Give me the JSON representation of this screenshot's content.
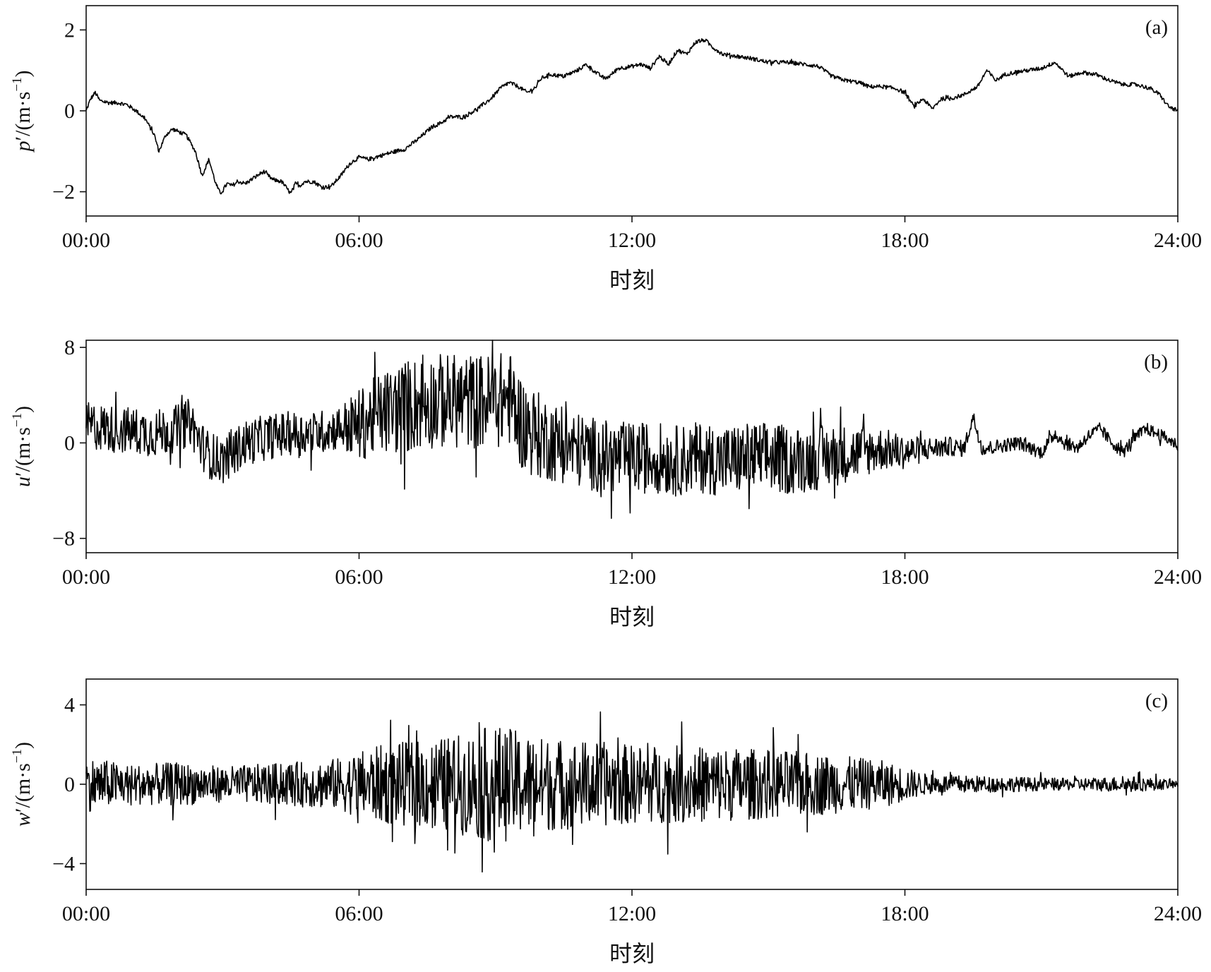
{
  "colors": {
    "line": "#000000",
    "axis": "#111111",
    "background": "#ffffff"
  },
  "chart_data": [
    {
      "type": "line",
      "panel_label": "(a)",
      "ylabel_symbol": "p",
      "ylabel_unit": "/(m·s",
      "ylabel_exp": "−1",
      "ylabel_close": ")",
      "xlabel": "时刻",
      "xlim": [
        0,
        24
      ],
      "ylim": [
        -2.6,
        2.6
      ],
      "xticks": [
        0,
        6,
        12,
        18,
        24
      ],
      "xtick_labels": [
        "00:00",
        "06:00",
        "12:00",
        "18:00",
        "24:00"
      ],
      "yticks": [
        -2,
        0,
        2
      ],
      "ytick_labels": [
        "−2",
        "0",
        "2"
      ],
      "noise_envelope": [
        [
          0,
          0.05
        ],
        [
          24,
          0.05
        ]
      ],
      "series": [
        {
          "x": [
            0,
            0.1,
            0.2,
            0.3,
            0.5,
            0.7,
            0.9,
            1.1,
            1.3,
            1.5,
            1.6,
            1.75,
            1.9,
            2.0,
            2.2,
            2.4,
            2.55,
            2.7,
            2.85,
            2.95,
            3.1,
            3.2,
            3.35,
            3.5,
            3.7,
            3.9,
            4.1,
            4.3,
            4.5,
            4.6,
            4.7,
            4.8,
            5.0,
            5.2,
            5.4,
            5.6,
            5.8,
            6.0,
            6.2,
            6.5,
            6.8,
            7.0,
            7.3,
            7.6,
            7.8,
            8.0,
            8.3,
            8.6,
            8.9,
            9.1,
            9.3,
            9.5,
            9.7,
            9.9,
            10.0,
            10.2,
            10.5,
            10.8,
            11.0,
            11.2,
            11.4,
            11.5,
            11.7,
            12.0,
            12.2,
            12.4,
            12.6,
            12.8,
            13.0,
            13.2,
            13.4,
            13.6,
            13.8,
            14.0,
            14.3,
            14.6,
            15.0,
            15.4,
            15.8,
            16.1,
            16.4,
            16.7,
            17.0,
            17.2,
            17.5,
            17.8,
            18.0,
            18.2,
            18.4,
            18.6,
            18.8,
            19.0,
            19.3,
            19.6,
            19.8,
            20.0,
            20.2,
            20.4,
            20.7,
            21.0,
            21.3,
            21.6,
            21.9,
            22.2,
            22.5,
            22.8,
            23.1,
            23.4,
            23.6,
            23.8,
            24.0
          ],
          "values": [
            0.0,
            0.3,
            0.45,
            0.25,
            0.2,
            0.2,
            0.15,
            0.0,
            -0.2,
            -0.6,
            -1.0,
            -0.6,
            -0.45,
            -0.5,
            -0.6,
            -1.0,
            -1.6,
            -1.2,
            -1.8,
            -2.05,
            -1.8,
            -1.85,
            -1.75,
            -1.8,
            -1.65,
            -1.5,
            -1.7,
            -1.75,
            -2.05,
            -1.8,
            -1.85,
            -1.75,
            -1.75,
            -1.9,
            -1.85,
            -1.6,
            -1.3,
            -1.15,
            -1.2,
            -1.1,
            -1.0,
            -0.95,
            -0.7,
            -0.4,
            -0.3,
            -0.15,
            -0.15,
            0.05,
            0.3,
            0.55,
            0.7,
            0.6,
            0.45,
            0.6,
            0.8,
            0.9,
            0.85,
            1.0,
            1.15,
            0.95,
            0.8,
            0.85,
            1.05,
            1.1,
            1.15,
            1.05,
            1.35,
            1.15,
            1.5,
            1.4,
            1.7,
            1.75,
            1.55,
            1.4,
            1.35,
            1.3,
            1.2,
            1.2,
            1.15,
            1.1,
            0.85,
            0.75,
            0.7,
            0.6,
            0.6,
            0.55,
            0.45,
            0.1,
            0.3,
            0.05,
            0.3,
            0.3,
            0.4,
            0.6,
            1.0,
            0.75,
            0.9,
            0.95,
            1.0,
            1.05,
            1.2,
            0.85,
            0.95,
            0.9,
            0.75,
            0.65,
            0.65,
            0.55,
            0.4,
            0.1,
            0.0
          ]
        }
      ]
    },
    {
      "type": "line",
      "panel_label": "(b)",
      "ylabel_symbol": "u",
      "ylabel_unit": "/(m·s",
      "ylabel_exp": "−1",
      "ylabel_close": ")",
      "xlabel": "时刻",
      "xlim": [
        0,
        24
      ],
      "ylim": [
        -9.2,
        8.6
      ],
      "xticks": [
        0,
        6,
        12,
        18,
        24
      ],
      "xtick_labels": [
        "00:00",
        "06:00",
        "12:00",
        "18:00",
        "24:00"
      ],
      "yticks": [
        -8,
        0,
        8
      ],
      "ytick_labels": [
        "−8",
        "0",
        "8"
      ],
      "noise_envelope": [
        [
          0,
          2.0
        ],
        [
          2.5,
          2.0
        ],
        [
          5.5,
          1.8
        ],
        [
          6.0,
          3.0
        ],
        [
          7.0,
          4.0
        ],
        [
          8.5,
          4.0
        ],
        [
          9.5,
          4.0
        ],
        [
          10.5,
          3.2
        ],
        [
          12.0,
          3.0
        ],
        [
          15.0,
          3.0
        ],
        [
          16.5,
          2.6
        ],
        [
          17.5,
          1.8
        ],
        [
          18.5,
          1.0
        ],
        [
          19.5,
          0.6
        ],
        [
          24.0,
          0.5
        ]
      ],
      "series": [
        {
          "x": [
            0,
            0.5,
            1.0,
            1.5,
            2.0,
            2.3,
            2.5,
            2.7,
            3.0,
            3.5,
            4.0,
            4.5,
            5.0,
            5.5,
            6.0,
            6.5,
            7.0,
            7.5,
            8.0,
            8.5,
            9.0,
            9.3,
            9.6,
            10.0,
            10.5,
            11.0,
            11.5,
            12.0,
            12.5,
            13.0,
            13.5,
            14.0,
            14.5,
            15.0,
            15.5,
            16.0,
            16.5,
            17.0,
            17.5,
            18.0,
            18.5,
            19.0,
            19.3,
            19.5,
            19.7,
            20.0,
            20.5,
            21.0,
            21.3,
            21.5,
            21.8,
            22.0,
            22.3,
            22.5,
            22.8,
            23.0,
            23.3,
            23.7,
            24.0
          ],
          "values": [
            1.5,
            1.2,
            1.0,
            0.8,
            1.2,
            1.8,
            0.0,
            -1.0,
            -1.5,
            0.0,
            0.5,
            0.8,
            0.8,
            1.2,
            1.5,
            2.5,
            3.0,
            3.5,
            3.5,
            3.5,
            3.5,
            3.8,
            1.5,
            0.5,
            -0.2,
            -0.8,
            -1.2,
            -1.3,
            -1.2,
            -1.5,
            -1.2,
            -1.5,
            -1.3,
            -1.2,
            -1.5,
            -1.3,
            -1.0,
            -0.8,
            -0.5,
            -0.8,
            -0.5,
            -0.3,
            -0.5,
            2.2,
            -0.5,
            -0.3,
            0.0,
            -0.8,
            0.8,
            0.0,
            -0.4,
            0.5,
            1.2,
            0.2,
            -0.8,
            0.2,
            1.2,
            0.5,
            -0.2
          ]
        }
      ]
    },
    {
      "type": "line",
      "panel_label": "(c)",
      "ylabel_symbol": "w",
      "ylabel_unit": "/(m·s",
      "ylabel_exp": "−1",
      "ylabel_close": ")",
      "xlabel": "时刻",
      "xlim": [
        0,
        24
      ],
      "ylim": [
        -5.3,
        5.3
      ],
      "xticks": [
        0,
        6,
        12,
        18,
        24
      ],
      "xtick_labels": [
        "00:00",
        "06:00",
        "12:00",
        "18:00",
        "24:00"
      ],
      "yticks": [
        -4,
        0,
        4
      ],
      "ytick_labels": [
        "−4",
        "0",
        "4"
      ],
      "noise_envelope": [
        [
          0,
          1.4
        ],
        [
          1.0,
          1.0
        ],
        [
          2.0,
          1.1
        ],
        [
          3.0,
          0.9
        ],
        [
          4.5,
          1.1
        ],
        [
          5.5,
          1.3
        ],
        [
          6.5,
          2.0
        ],
        [
          8.0,
          2.4
        ],
        [
          9.0,
          3.0
        ],
        [
          10.0,
          2.4
        ],
        [
          12.0,
          2.0
        ],
        [
          14.0,
          1.9
        ],
        [
          16.0,
          1.6
        ],
        [
          17.5,
          1.2
        ],
        [
          18.5,
          0.5
        ],
        [
          20.0,
          0.4
        ],
        [
          21.5,
          0.3
        ],
        [
          23.0,
          0.4
        ],
        [
          24.0,
          0.2
        ]
      ],
      "series": [
        {
          "x": [
            0,
            24
          ],
          "values": [
            0.0,
            0.0
          ]
        }
      ]
    }
  ]
}
